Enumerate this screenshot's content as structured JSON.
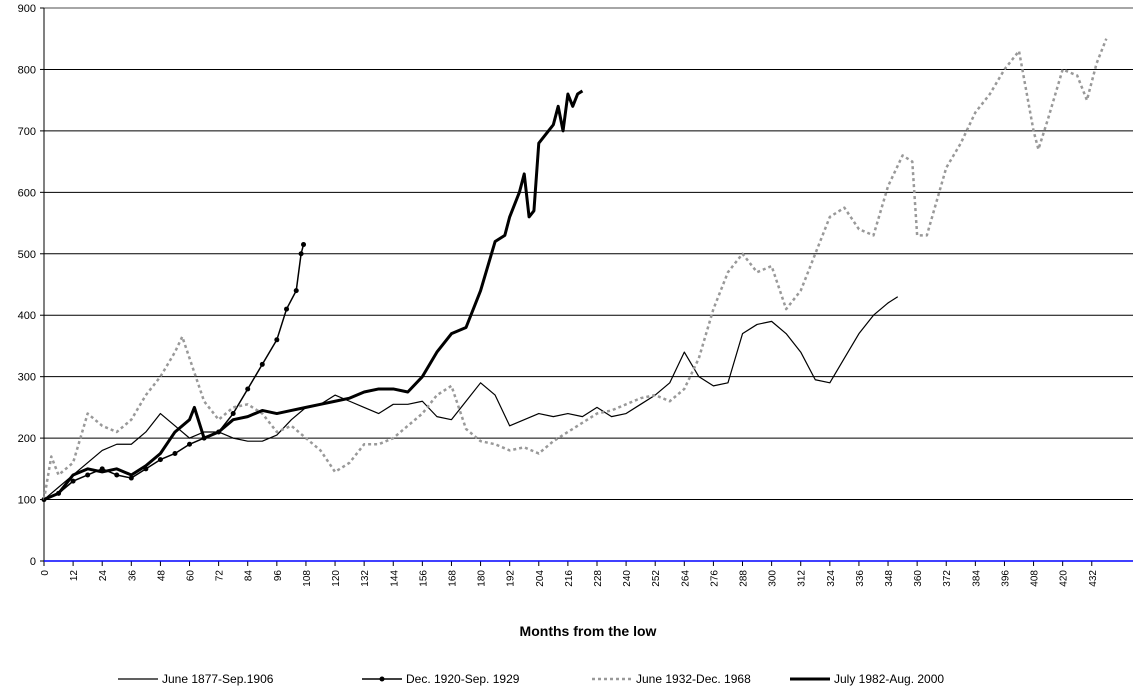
{
  "chart_data": {
    "type": "line",
    "xlabel": "Months from the low",
    "xlim": [
      0,
      449
    ],
    "ylim": [
      0,
      900
    ],
    "xticks": [
      0,
      12,
      24,
      36,
      48,
      60,
      72,
      84,
      96,
      108,
      120,
      132,
      144,
      156,
      168,
      180,
      192,
      204,
      216,
      228,
      240,
      252,
      264,
      276,
      288,
      300,
      312,
      324,
      336,
      348,
      360,
      372,
      384,
      396,
      408,
      420,
      432
    ],
    "yticks": [
      0,
      100,
      200,
      300,
      400,
      500,
      600,
      700,
      800,
      900
    ],
    "grid": true,
    "legend": "bottom",
    "series": [
      {
        "name": "June 1877-Sep.1906",
        "color": "#000000",
        "line_width": 1.2,
        "line_style": "solid",
        "marker": false,
        "x": [
          0,
          6,
          12,
          18,
          24,
          30,
          36,
          42,
          48,
          54,
          60,
          66,
          72,
          78,
          84,
          90,
          96,
          102,
          108,
          114,
          120,
          126,
          132,
          138,
          144,
          150,
          156,
          162,
          168,
          174,
          180,
          186,
          192,
          198,
          204,
          210,
          216,
          222,
          228,
          234,
          240,
          246,
          252,
          258,
          264,
          270,
          276,
          282,
          288,
          294,
          300,
          306,
          312,
          318,
          324,
          330,
          336,
          342,
          348,
          352
        ],
        "values": [
          100,
          120,
          140,
          160,
          180,
          190,
          190,
          210,
          240,
          220,
          200,
          210,
          210,
          200,
          195,
          195,
          205,
          230,
          250,
          255,
          270,
          260,
          250,
          240,
          255,
          255,
          260,
          235,
          230,
          260,
          290,
          270,
          220,
          230,
          240,
          235,
          240,
          235,
          250,
          235,
          240,
          255,
          270,
          290,
          340,
          300,
          285,
          290,
          370,
          385,
          390,
          370,
          340,
          295,
          290,
          330,
          370,
          400,
          420,
          430
        ]
      },
      {
        "name": "Dec. 1920-Sep. 1929",
        "color": "#000000",
        "line_width": 1.5,
        "line_style": "solid",
        "marker": true,
        "x": [
          0,
          6,
          12,
          18,
          24,
          30,
          36,
          42,
          48,
          54,
          60,
          66,
          72,
          78,
          84,
          90,
          96,
          100,
          104,
          106,
          107
        ],
        "values": [
          100,
          110,
          130,
          140,
          150,
          140,
          135,
          150,
          165,
          175,
          190,
          200,
          210,
          240,
          280,
          320,
          360,
          410,
          440,
          500,
          515
        ]
      },
      {
        "name": "June 1932-Dec. 1968",
        "color": "#999999",
        "line_width": 2.5,
        "line_style": "dotted",
        "marker": false,
        "x": [
          0,
          3,
          6,
          12,
          18,
          24,
          30,
          36,
          42,
          48,
          54,
          57,
          60,
          66,
          72,
          78,
          84,
          90,
          96,
          102,
          108,
          114,
          120,
          126,
          132,
          138,
          144,
          150,
          156,
          162,
          168,
          174,
          180,
          186,
          192,
          198,
          204,
          210,
          216,
          222,
          228,
          234,
          240,
          246,
          252,
          258,
          264,
          270,
          276,
          282,
          288,
          294,
          300,
          306,
          312,
          318,
          324,
          330,
          336,
          342,
          348,
          354,
          358,
          360,
          364,
          372,
          378,
          384,
          390,
          396,
          402,
          408,
          410,
          414,
          420,
          426,
          430,
          434,
          438
        ],
        "values": [
          100,
          170,
          140,
          160,
          240,
          220,
          210,
          230,
          270,
          300,
          340,
          365,
          330,
          260,
          230,
          250,
          255,
          240,
          210,
          220,
          200,
          180,
          145,
          160,
          190,
          190,
          200,
          220,
          240,
          270,
          285,
          215,
          195,
          190,
          180,
          185,
          175,
          195,
          210,
          225,
          240,
          245,
          255,
          265,
          270,
          260,
          280,
          330,
          410,
          470,
          500,
          470,
          480,
          410,
          440,
          500,
          560,
          575,
          540,
          530,
          610,
          660,
          650,
          530,
          530,
          640,
          680,
          730,
          760,
          800,
          830,
          700,
          670,
          720,
          800,
          790,
          750,
          810,
          850
        ]
      },
      {
        "name": "July 1982-Aug. 2000",
        "color": "#000000",
        "line_width": 3,
        "line_style": "solid",
        "marker": false,
        "x": [
          0,
          6,
          12,
          18,
          24,
          30,
          36,
          42,
          48,
          54,
          60,
          62,
          66,
          72,
          78,
          84,
          90,
          96,
          102,
          108,
          114,
          120,
          126,
          132,
          138,
          144,
          150,
          156,
          162,
          168,
          174,
          180,
          186,
          190,
          192,
          196,
          198,
          200,
          202,
          204,
          210,
          212,
          214,
          216,
          218,
          220,
          222
        ],
        "values": [
          100,
          110,
          140,
          150,
          145,
          150,
          140,
          155,
          175,
          210,
          230,
          250,
          200,
          210,
          230,
          235,
          245,
          240,
          245,
          250,
          255,
          260,
          265,
          275,
          280,
          280,
          275,
          300,
          340,
          370,
          380,
          440,
          520,
          530,
          560,
          600,
          630,
          560,
          570,
          680,
          710,
          740,
          700,
          760,
          740,
          760,
          765
        ]
      }
    ]
  }
}
